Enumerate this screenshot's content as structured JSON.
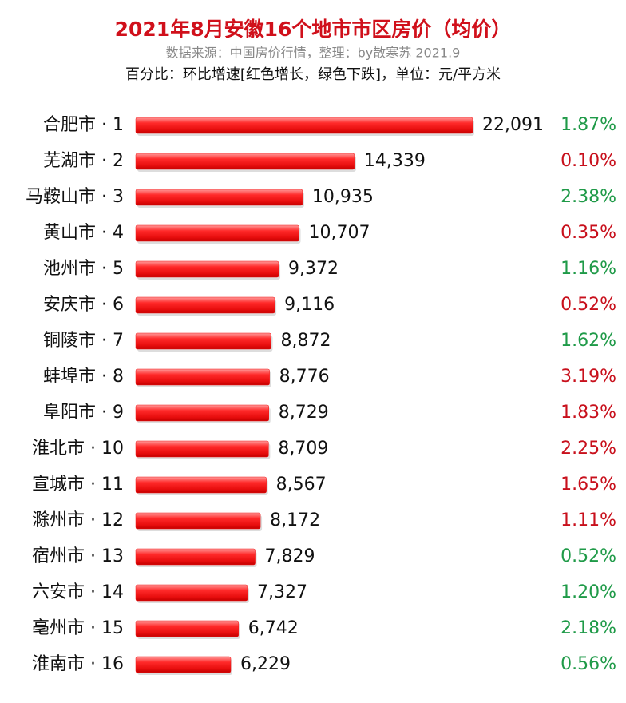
{
  "chart_data": {
    "type": "bar",
    "title": "2021年8月安徽16个地市市区房价（均价）",
    "subtitle": "数据来源：中国房价行情，整理：by散寒苏  2021.9",
    "note": "百分比：环比增速[红色增长，绿色下跌]，单位：元/平方米",
    "categories": [
      "合肥市 · 1",
      "芜湖市 · 2",
      "马鞍山市 · 3",
      "黄山市 · 4",
      "池州市 · 5",
      "安庆市 · 6",
      "铜陵市 · 7",
      "蚌埠市 · 8",
      "阜阳市 · 9",
      "淮北市 · 10",
      "宣城市 · 11",
      "滁州市 · 12",
      "宿州市 · 13",
      "六安市 · 14",
      "亳州市 · 15",
      "淮南市 · 16"
    ],
    "values": [
      22091,
      14339,
      10935,
      10707,
      9372,
      9116,
      8872,
      8776,
      8729,
      8709,
      8567,
      8172,
      7829,
      7327,
      6742,
      6229
    ],
    "value_labels": [
      "22,091",
      "14,339",
      "10,935",
      "10,707",
      "9,372",
      "9,116",
      "8,872",
      "8,776",
      "8,729",
      "8,709",
      "8,567",
      "8,172",
      "7,829",
      "7,327",
      "6,742",
      "6,229"
    ],
    "change_labels": [
      "1.87%",
      "0.10%",
      "2.38%",
      "0.35%",
      "1.16%",
      "0.52%",
      "1.62%",
      "3.19%",
      "1.83%",
      "2.25%",
      "1.65%",
      "1.11%",
      "0.52%",
      "1.20%",
      "2.18%",
      "0.56%"
    ],
    "change_colors": [
      "#1f9a48",
      "#c8101c",
      "#1f9a48",
      "#c8101c",
      "#1f9a48",
      "#c8101c",
      "#1f9a48",
      "#c8101c",
      "#c8101c",
      "#c8101c",
      "#c8101c",
      "#c8101c",
      "#1f9a48",
      "#1f9a48",
      "#1f9a48",
      "#1f9a48"
    ],
    "color": "#f01818"
  }
}
